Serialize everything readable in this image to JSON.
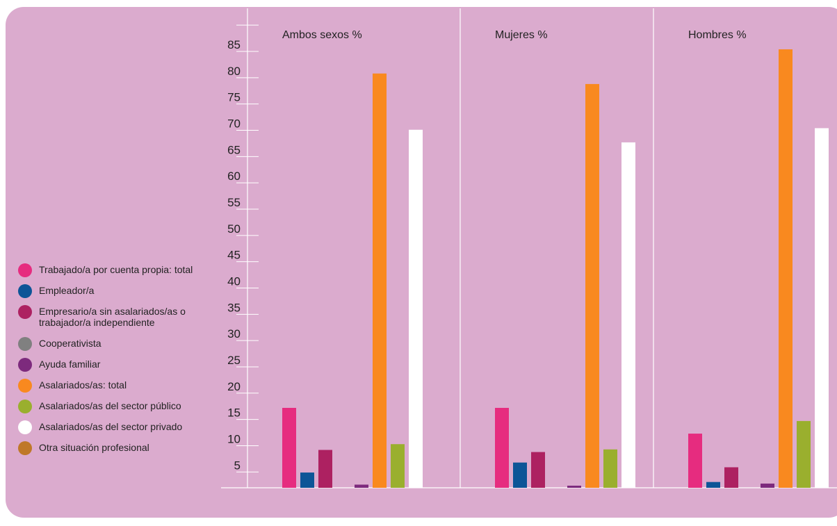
{
  "colors": {
    "panel_background": "#dbabce",
    "axis_line": "#ffffff"
  },
  "chart_data": {
    "type": "bar",
    "categories": [
      "Ambos sexos %",
      "Mujeres %",
      "Hombres %"
    ],
    "yticks": [
      5,
      10,
      15,
      20,
      25,
      30,
      35,
      40,
      45,
      50,
      55,
      60,
      65,
      70,
      75,
      80,
      85
    ],
    "ylim": [
      2,
      90
    ],
    "grid": false,
    "legend_position": "left",
    "series": [
      {
        "name": "Trabajado/a por cuenta propia: total",
        "color": "#e62c7f",
        "values": [
          17.2,
          17.2,
          12.3
        ]
      },
      {
        "name": "Empleador/a",
        "color": "#0d5597",
        "values": [
          4.9,
          6.8,
          3.1
        ]
      },
      {
        "name": "Empresario/a sin asalariados/as o trabajador/a independiente",
        "color": "#ad2161",
        "values": [
          9.2,
          8.8,
          5.9
        ]
      },
      {
        "name": "Cooperativista",
        "color": "#808080",
        "values": [
          0,
          0,
          0
        ]
      },
      {
        "name": "Ayuda familiar",
        "color": "#7d2a7d",
        "values": [
          2.6,
          2.4,
          2.8
        ]
      },
      {
        "name": "Asalariados/as: total",
        "color": "#f9891f",
        "values": [
          80.8,
          78.8,
          85.4
        ]
      },
      {
        "name": "Asalariados/as del sector público",
        "color": "#9aaf2e",
        "values": [
          10.3,
          9.3,
          14.7
        ]
      },
      {
        "name": "Asalariados/as del sector privado",
        "color": "#ffffff",
        "values": [
          70.1,
          67.7,
          70.4
        ]
      },
      {
        "name": "Otra situación profesional",
        "color": "#bf7828",
        "values": [
          0,
          0,
          0
        ]
      }
    ]
  }
}
